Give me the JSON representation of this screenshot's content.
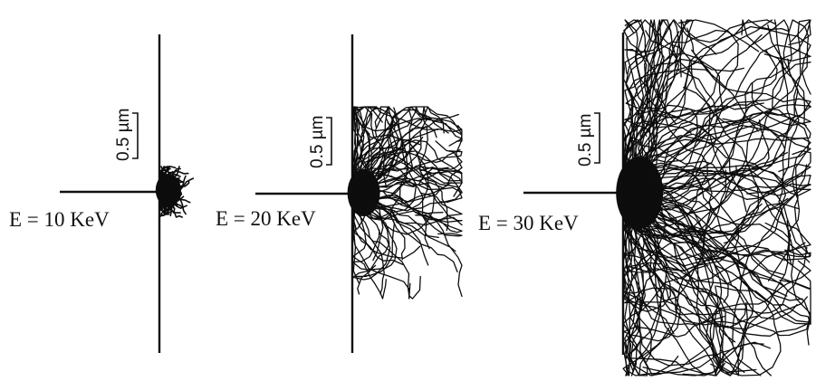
{
  "panels": [
    {
      "id": "10kev",
      "energy_label": "E = 10 KeV",
      "scale_label": "0.5 µm",
      "energy_keV": 10,
      "trajectory_density": "low",
      "interaction_volume": "small"
    },
    {
      "id": "20kev",
      "energy_label": "E = 20 KeV",
      "scale_label": "0.5 µm",
      "energy_keV": 20,
      "trajectory_density": "medium",
      "interaction_volume": "medium"
    },
    {
      "id": "30kev",
      "energy_label": "E = 30 KeV",
      "scale_label": "0.5 µm",
      "energy_keV": 30,
      "trajectory_density": "high",
      "interaction_volume": "large"
    }
  ],
  "colors": {
    "background": "#ffffff",
    "ink": "#111111",
    "trajectory": "#0d0d0d"
  }
}
